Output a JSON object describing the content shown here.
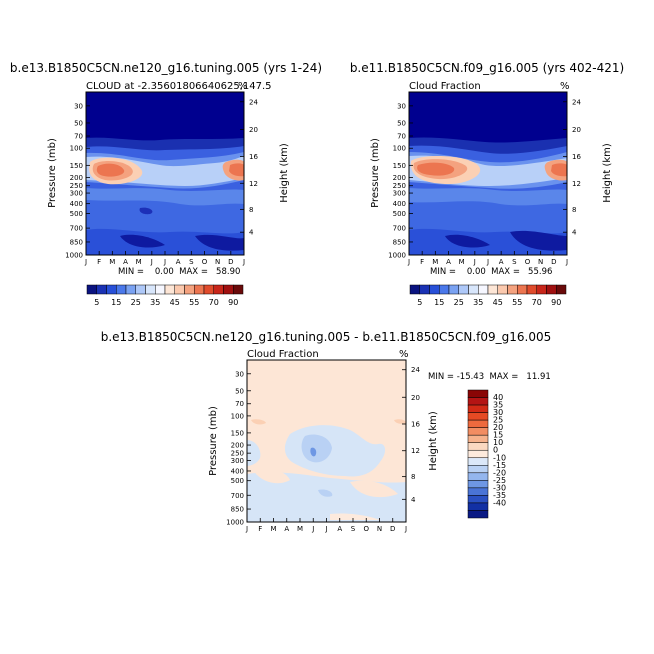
{
  "panels": [
    {
      "title": "b.e13.B1850C5CN.ne120_g16.tuning.005 (yrs 1-24)",
      "subtitle_left": "CLOUD at -2.35601806640625,147.5",
      "subtitle_right": "%",
      "min_max": "MIN =    0.00  MAX =   58.90"
    },
    {
      "title": "b.e11.B1850C5CN.f09_g16.005 (yrs 402-421)",
      "subtitle_left": "Cloud Fraction",
      "subtitle_right": "%",
      "min_max": "MIN =    0.00  MAX =   55.96"
    },
    {
      "title": "b.e13.B1850C5CN.ne120_g16.tuning.005 - b.e11.B1850C5CN.f09_g16.005",
      "subtitle_left": "Cloud Fraction",
      "subtitle_right": "%",
      "min_max": "MIN = -15.43  MAX =   11.91"
    }
  ],
  "chart_data": [
    {
      "type": "heatmap",
      "title": "b.e13.B1850C5CN.ne120_g16.tuning.005 (yrs 1-24)",
      "subtitle": "CLOUD at -2.35601806640625,147.5",
      "units": "%",
      "ylabel": "Pressure (mb)",
      "y2label": "Height (km)",
      "months": [
        "J",
        "F",
        "M",
        "A",
        "M",
        "J",
        "J",
        "A",
        "S",
        "O",
        "N",
        "D",
        "J"
      ],
      "pressure_ticks": [
        "30",
        "50",
        "70",
        "100",
        "150",
        "200",
        "250",
        "300",
        "400",
        "500",
        "700",
        "850",
        "1000"
      ],
      "height_ticks": [
        "24",
        "20",
        "16",
        "12",
        "8",
        "4"
      ],
      "min": 0.0,
      "max": 58.9,
      "colorbar_levels": [
        "5",
        "15",
        "25",
        "35",
        "45",
        "55",
        "70",
        "90"
      ],
      "features": "cloud maximum near 150 mb in Feb-Apr and again in Dec (upper-level cirrus); weak values below 300 mb"
    },
    {
      "type": "heatmap",
      "title": "b.e11.B1850C5CN.f09_g16.005 (yrs 402-421)",
      "subtitle": "Cloud Fraction",
      "units": "%",
      "ylabel": "Pressure (mb)",
      "y2label": "Height (km)",
      "months": [
        "J",
        "F",
        "M",
        "A",
        "M",
        "J",
        "J",
        "A",
        "S",
        "O",
        "N",
        "D",
        "J"
      ],
      "pressure_ticks": [
        "30",
        "50",
        "70",
        "100",
        "150",
        "200",
        "250",
        "300",
        "400",
        "500",
        "700",
        "850",
        "1000"
      ],
      "height_ticks": [
        "24",
        "20",
        "16",
        "12",
        "8",
        "4"
      ],
      "min": 0.0,
      "max": 55.96,
      "colorbar_levels": [
        "5",
        "15",
        "25",
        "35",
        "45",
        "55",
        "70",
        "90"
      ],
      "features": "cloud maximum near 150 mb in Jan-Apr and Dec"
    },
    {
      "type": "heatmap",
      "title": "b.e13.B1850C5CN.ne120_g16.tuning.005 - b.e11.B1850C5CN.f09_g16.005",
      "subtitle": "Cloud Fraction",
      "units": "%",
      "ylabel": "Pressure (mb)",
      "y2label": "Height (km)",
      "months": [
        "J",
        "F",
        "M",
        "A",
        "M",
        "J",
        "J",
        "A",
        "S",
        "O",
        "N",
        "D",
        "J"
      ],
      "pressure_ticks": [
        "30",
        "50",
        "70",
        "100",
        "150",
        "200",
        "250",
        "300",
        "400",
        "500",
        "700",
        "850",
        "1000"
      ],
      "height_ticks": [
        "24",
        "20",
        "16",
        "12",
        "8",
        "4"
      ],
      "min": -15.43,
      "max": 11.91,
      "colorbar_levels": [
        "40",
        "35",
        "30",
        "25",
        "20",
        "15",
        "10",
        "0",
        "-10",
        "-15",
        "-20",
        "-25",
        "-30",
        "-35",
        "-40"
      ],
      "features": "mostly 0 to +10 difference; negative -10 to 0 region around 150-300 mb in May-Aug and near 500 mb"
    }
  ],
  "axis_labels": {
    "pressure": "Pressure (mb)",
    "height": "Height (km)"
  },
  "months": [
    "J",
    "F",
    "M",
    "A",
    "M",
    "J",
    "J",
    "A",
    "S",
    "O",
    "N",
    "D",
    "J"
  ],
  "pressure_ticks": [
    "30",
    "50",
    "70",
    "100",
    "150",
    "200",
    "250",
    "300",
    "400",
    "500",
    "700",
    "850",
    "1000"
  ],
  "height_ticks": [
    "24",
    "20",
    "16",
    "12",
    "8",
    "4"
  ],
  "top_colorbar": {
    "labels": [
      "5",
      "15",
      "25",
      "35",
      "45",
      "55",
      "70",
      "90"
    ],
    "colors": [
      "#0a1380",
      "#1a32b4",
      "#2850d8",
      "#4a78ea",
      "#7aa2f2",
      "#aec8f8",
      "#d8e6fb",
      "#f6f7ff",
      "#fde6d6",
      "#fbc9ae",
      "#f4a27f",
      "#ec7550",
      "#e04b2c",
      "#c8261a",
      "#a01010",
      "#6a0a0a"
    ]
  },
  "diff_colorbar": {
    "labels": [
      "40",
      "35",
      "30",
      "25",
      "20",
      "15",
      "10",
      "0",
      "-10",
      "-15",
      "-20",
      "-25",
      "-30",
      "-35",
      "-40"
    ],
    "colors": [
      "#8a0505",
      "#b41414",
      "#d22a16",
      "#e64a24",
      "#ee6a3e",
      "#f28d62",
      "#f6b28c",
      "#fbd9c1",
      "#fdeadd",
      "#dbe8f9",
      "#b9d1f4",
      "#94b6ee",
      "#6e97e4",
      "#4a74d6",
      "#2a50c2",
      "#1230a4",
      "#0a1a84"
    ]
  },
  "palette": {
    "deep": "#00008f",
    "peak": "#e05a3a",
    "diff_bg": "#fde6d6",
    "diff_neg": "#d6e5f7"
  }
}
